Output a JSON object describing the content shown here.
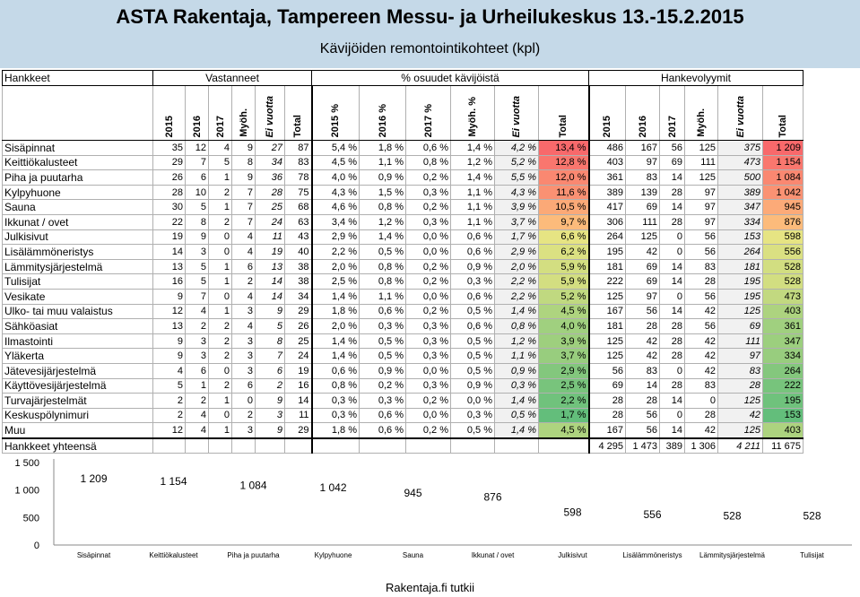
{
  "title": "ASTA Rakentaja, Tampereen Messu- ja Urheilukeskus 13.-15.2.2015",
  "subtitle": "Kävijöiden remontointikohteet (kpl)",
  "groups": {
    "hankkeet": "Hankkeet",
    "vastanneet": "Vastanneet",
    "osuudet": "% osuudet kävijöistä",
    "hankevolyymit": "Hankevolyymit"
  },
  "columns": {
    "vastanneet": [
      "2015",
      "2016",
      "2017",
      "Myöh.",
      "Ei vuotta",
      "Total"
    ],
    "osuudet": [
      "2015 %",
      "2016 %",
      "2017 %",
      "Myöh. %",
      "Ei vuotta",
      "Total"
    ],
    "hankevolyymit": [
      "2015",
      "2016",
      "2017",
      "Myöh.",
      "Ei vuotta",
      "Total"
    ]
  },
  "rows": [
    {
      "name": "Sisäpinnat",
      "v": [
        "35",
        "12",
        "4",
        "9",
        "27",
        "87"
      ],
      "p": [
        "5,4 %",
        "1,8 %",
        "0,6 %",
        "1,4 %",
        "4,2 %",
        "13,4 %"
      ],
      "h": [
        "486",
        "167",
        "56",
        "125",
        "375",
        "1 209"
      ]
    },
    {
      "name": "Keittiökalusteet",
      "v": [
        "29",
        "7",
        "5",
        "8",
        "34",
        "83"
      ],
      "p": [
        "4,5 %",
        "1,1 %",
        "0,8 %",
        "1,2 %",
        "5,2 %",
        "12,8 %"
      ],
      "h": [
        "403",
        "97",
        "69",
        "111",
        "473",
        "1 154"
      ]
    },
    {
      "name": "Piha ja puutarha",
      "v": [
        "26",
        "6",
        "1",
        "9",
        "36",
        "78"
      ],
      "p": [
        "4,0 %",
        "0,9 %",
        "0,2 %",
        "1,4 %",
        "5,5 %",
        "12,0 %"
      ],
      "h": [
        "361",
        "83",
        "14",
        "125",
        "500",
        "1 084"
      ]
    },
    {
      "name": "Kylpyhuone",
      "v": [
        "28",
        "10",
        "2",
        "7",
        "28",
        "75"
      ],
      "p": [
        "4,3 %",
        "1,5 %",
        "0,3 %",
        "1,1 %",
        "4,3 %",
        "11,6 %"
      ],
      "h": [
        "389",
        "139",
        "28",
        "97",
        "389",
        "1 042"
      ]
    },
    {
      "name": "Sauna",
      "v": [
        "30",
        "5",
        "1",
        "7",
        "25",
        "68"
      ],
      "p": [
        "4,6 %",
        "0,8 %",
        "0,2 %",
        "1,1 %",
        "3,9 %",
        "10,5 %"
      ],
      "h": [
        "417",
        "69",
        "14",
        "97",
        "347",
        "945"
      ]
    },
    {
      "name": "Ikkunat / ovet",
      "v": [
        "22",
        "8",
        "2",
        "7",
        "24",
        "63"
      ],
      "p": [
        "3,4 %",
        "1,2 %",
        "0,3 %",
        "1,1 %",
        "3,7 %",
        "9,7 %"
      ],
      "h": [
        "306",
        "111",
        "28",
        "97",
        "334",
        "876"
      ]
    },
    {
      "name": "Julkisivut",
      "v": [
        "19",
        "9",
        "0",
        "4",
        "11",
        "43"
      ],
      "p": [
        "2,9 %",
        "1,4 %",
        "0,0 %",
        "0,6 %",
        "1,7 %",
        "6,6 %"
      ],
      "h": [
        "264",
        "125",
        "0",
        "56",
        "153",
        "598"
      ]
    },
    {
      "name": "Lisälämmöneristys",
      "v": [
        "14",
        "3",
        "0",
        "4",
        "19",
        "40"
      ],
      "p": [
        "2,2 %",
        "0,5 %",
        "0,0 %",
        "0,6 %",
        "2,9 %",
        "6,2 %"
      ],
      "h": [
        "195",
        "42",
        "0",
        "56",
        "264",
        "556"
      ]
    },
    {
      "name": "Lämmitysjärjestelmä",
      "v": [
        "13",
        "5",
        "1",
        "6",
        "13",
        "38"
      ],
      "p": [
        "2,0 %",
        "0,8 %",
        "0,2 %",
        "0,9 %",
        "2,0 %",
        "5,9 %"
      ],
      "h": [
        "181",
        "69",
        "14",
        "83",
        "181",
        "528"
      ]
    },
    {
      "name": "Tulisijat",
      "v": [
        "16",
        "5",
        "1",
        "2",
        "14",
        "38"
      ],
      "p": [
        "2,5 %",
        "0,8 %",
        "0,2 %",
        "0,3 %",
        "2,2 %",
        "5,9 %"
      ],
      "h": [
        "222",
        "69",
        "14",
        "28",
        "195",
        "528"
      ]
    },
    {
      "name": "Vesikate",
      "v": [
        "9",
        "7",
        "0",
        "4",
        "14",
        "34"
      ],
      "p": [
        "1,4 %",
        "1,1 %",
        "0,0 %",
        "0,6 %",
        "2,2 %",
        "5,2 %"
      ],
      "h": [
        "125",
        "97",
        "0",
        "56",
        "195",
        "473"
      ]
    },
    {
      "name": "Ulko- tai muu valaistus",
      "v": [
        "12",
        "4",
        "1",
        "3",
        "9",
        "29"
      ],
      "p": [
        "1,8 %",
        "0,6 %",
        "0,2 %",
        "0,5 %",
        "1,4 %",
        "4,5 %"
      ],
      "h": [
        "167",
        "56",
        "14",
        "42",
        "125",
        "403"
      ]
    },
    {
      "name": "Sähköasiat",
      "v": [
        "13",
        "2",
        "2",
        "4",
        "5",
        "26"
      ],
      "p": [
        "2,0 %",
        "0,3 %",
        "0,3 %",
        "0,6 %",
        "0,8 %",
        "4,0 %"
      ],
      "h": [
        "181",
        "28",
        "28",
        "56",
        "69",
        "361"
      ]
    },
    {
      "name": "Ilmastointi",
      "v": [
        "9",
        "3",
        "2",
        "3",
        "8",
        "25"
      ],
      "p": [
        "1,4 %",
        "0,5 %",
        "0,3 %",
        "0,5 %",
        "1,2 %",
        "3,9 %"
      ],
      "h": [
        "125",
        "42",
        "28",
        "42",
        "111",
        "347"
      ]
    },
    {
      "name": "Yläkerta",
      "v": [
        "9",
        "3",
        "2",
        "3",
        "7",
        "24"
      ],
      "p": [
        "1,4 %",
        "0,5 %",
        "0,3 %",
        "0,5 %",
        "1,1 %",
        "3,7 %"
      ],
      "h": [
        "125",
        "42",
        "28",
        "42",
        "97",
        "334"
      ]
    },
    {
      "name": "Jätevesijärjestelmä",
      "v": [
        "4",
        "6",
        "0",
        "3",
        "6",
        "19"
      ],
      "p": [
        "0,6 %",
        "0,9 %",
        "0,0 %",
        "0,5 %",
        "0,9 %",
        "2,9 %"
      ],
      "h": [
        "56",
        "83",
        "0",
        "42",
        "83",
        "264"
      ]
    },
    {
      "name": "Käyttövesijärjestelmä",
      "v": [
        "5",
        "1",
        "2",
        "6",
        "2",
        "16"
      ],
      "p": [
        "0,8 %",
        "0,2 %",
        "0,3 %",
        "0,9 %",
        "0,3 %",
        "2,5 %"
      ],
      "h": [
        "69",
        "14",
        "28",
        "83",
        "28",
        "222"
      ]
    },
    {
      "name": "Turvajärjestelmät",
      "v": [
        "2",
        "2",
        "1",
        "0",
        "9",
        "14"
      ],
      "p": [
        "0,3 %",
        "0,3 %",
        "0,2 %",
        "0,0 %",
        "1,4 %",
        "2,2 %"
      ],
      "h": [
        "28",
        "28",
        "14",
        "0",
        "125",
        "195"
      ]
    },
    {
      "name": "Keskuspölynimuri",
      "v": [
        "2",
        "4",
        "0",
        "2",
        "3",
        "11"
      ],
      "p": [
        "0,3 %",
        "0,6 %",
        "0,0 %",
        "0,3 %",
        "0,5 %",
        "1,7 %"
      ],
      "h": [
        "28",
        "56",
        "0",
        "28",
        "42",
        "153"
      ]
    },
    {
      "name": "Muu",
      "v": [
        "12",
        "4",
        "1",
        "3",
        "9",
        "29"
      ],
      "p": [
        "1,8 %",
        "0,6 %",
        "0,2 %",
        "0,5 %",
        "1,4 %",
        "4,5 %"
      ],
      "h": [
        "167",
        "56",
        "14",
        "42",
        "125",
        "403"
      ]
    }
  ],
  "total_row": {
    "name": "Hankkeet yhteensä",
    "h": [
      "4 295",
      "1 473",
      "389",
      "1 306",
      "4 211",
      "11 675"
    ]
  },
  "colors": {
    "gradient_high": "#f8696b",
    "gradient_mid": "#ffeb84",
    "gradient_low": "#63be7b",
    "bar": "#3366cc"
  },
  "chart_data": {
    "type": "bar",
    "categories": [
      "Sisäpinnat",
      "Keittiökalusteet",
      "Piha ja puutarha",
      "Kylpyhuone",
      "Sauna",
      "Ikkunat / ovet",
      "Julkisivut",
      "Lisälämmöneristys",
      "Lämmitysjärjestelmä",
      "Tulisijat"
    ],
    "values": [
      1209,
      1154,
      1084,
      1042,
      945,
      876,
      598,
      556,
      528,
      528
    ],
    "data_labels": [
      "1 209",
      "1 154",
      "1 084",
      "1 042",
      "945",
      "876",
      "598",
      "556",
      "528",
      "528"
    ],
    "y_ticks": [
      "0",
      "500",
      "1 000",
      "1 500"
    ],
    "ylim": [
      0,
      1500
    ]
  },
  "footer": "Rakentaja.fi tutkii"
}
